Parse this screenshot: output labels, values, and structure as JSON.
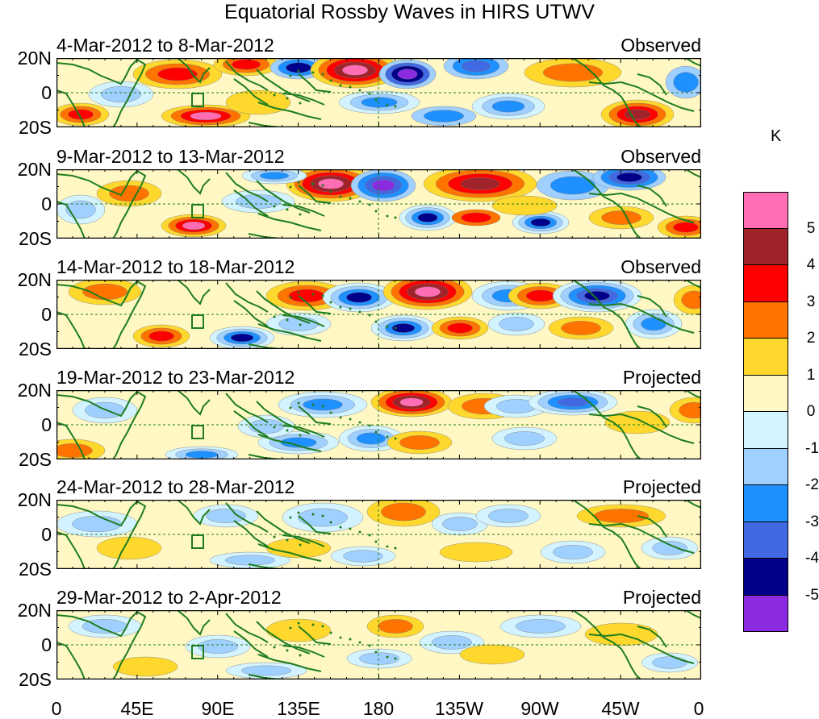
{
  "title": "Equatorial Rossby Waves in HIRS UTWV",
  "panels": [
    {
      "date_range": "4-Mar-2012 to 8-Mar-2012",
      "status": "Observed"
    },
    {
      "date_range": "9-Mar-2012 to 13-Mar-2012",
      "status": "Observed"
    },
    {
      "date_range": "14-Mar-2012 to 18-Mar-2012",
      "status": "Observed"
    },
    {
      "date_range": "19-Mar-2012 to 23-Mar-2012",
      "status": "Projected"
    },
    {
      "date_range": "24-Mar-2012 to 28-Mar-2012",
      "status": "Projected"
    },
    {
      "date_range": "29-Mar-2012 to 2-Apr-2012",
      "status": "Projected"
    }
  ],
  "lat_labels": {
    "north": "20N",
    "equator": "0",
    "south": "20S"
  },
  "lon_labels": [
    "0",
    "45E",
    "90E",
    "135E",
    "180",
    "135W",
    "90W",
    "45W",
    "0"
  ],
  "colorbar": {
    "unit": "K",
    "tick_labels": [
      "5",
      "4",
      "3",
      "2",
      "1",
      "0",
      "-1",
      "-2",
      "-3",
      "-4",
      "-5"
    ],
    "colors": [
      "#ff6eb4",
      "#a0232a",
      "#ff0000",
      "#ff7400",
      "#ffd82e",
      "#fff8c4",
      "#d2f3ff",
      "#a0d0ff",
      "#1e90ff",
      "#4169e1",
      "#00008b",
      "#8a2be2"
    ]
  },
  "colors": {
    "coast": "#1e7d1e",
    "panel_bg": "#fff8c4"
  }
}
